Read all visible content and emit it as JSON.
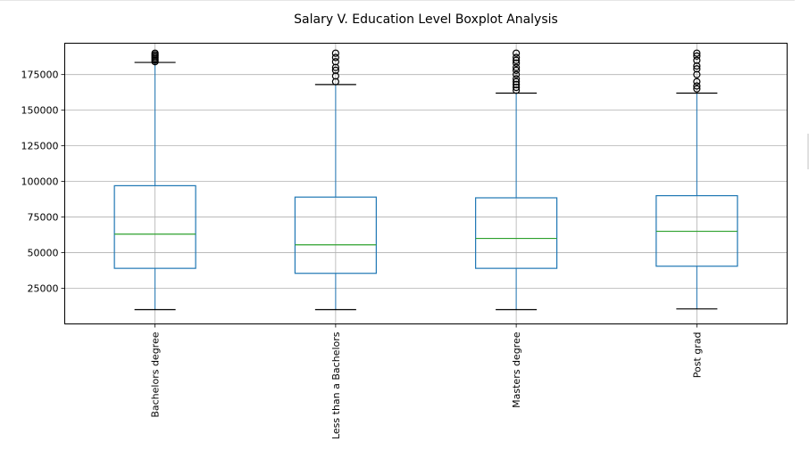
{
  "chart_data": {
    "type": "boxplot",
    "title": "Salary V. Education Level Boxplot Analysis",
    "xlabel": "",
    "ylabel": "",
    "ylim": [
      0,
      197000
    ],
    "yticks": [
      25000,
      50000,
      75000,
      100000,
      125000,
      150000,
      175000
    ],
    "ytick_labels": [
      "25000",
      "50000",
      "75000",
      "100000",
      "125000",
      "150000",
      "175000"
    ],
    "grid": true,
    "categories": [
      "Bachelors degree",
      "Less than a Bachelors",
      "Masters degree",
      "Post grad"
    ],
    "boxes": [
      {
        "whisker_low": 10000,
        "q1": 39000,
        "median": 63000,
        "q3": 97000,
        "whisker_high": 183500,
        "outliers": [
          184000,
          185000,
          186000,
          187000,
          188000,
          189000,
          190000
        ]
      },
      {
        "whisker_low": 10000,
        "q1": 35500,
        "median": 55500,
        "q3": 89000,
        "whisker_high": 168000,
        "outliers": [
          170000,
          174000,
          178000,
          180000,
          184000,
          187000,
          190000
        ]
      },
      {
        "whisker_low": 10000,
        "q1": 39000,
        "median": 60000,
        "q3": 88500,
        "whisker_high": 162000,
        "outliers": [
          164000,
          166000,
          168000,
          170000,
          172000,
          175000,
          178000,
          180000,
          183000,
          185000,
          187000,
          190000
        ]
      },
      {
        "whisker_low": 10500,
        "q1": 40500,
        "median": 65000,
        "q3": 90000,
        "whisker_high": 162000,
        "outliers": [
          165000,
          167000,
          170000,
          175000,
          179000,
          181000,
          185000,
          188000,
          190000
        ]
      }
    ],
    "colors": {
      "box": "#1f77b4",
      "median": "#2ca02c",
      "whisker_cap": "#000000",
      "grid": "#b0b0b0"
    }
  }
}
